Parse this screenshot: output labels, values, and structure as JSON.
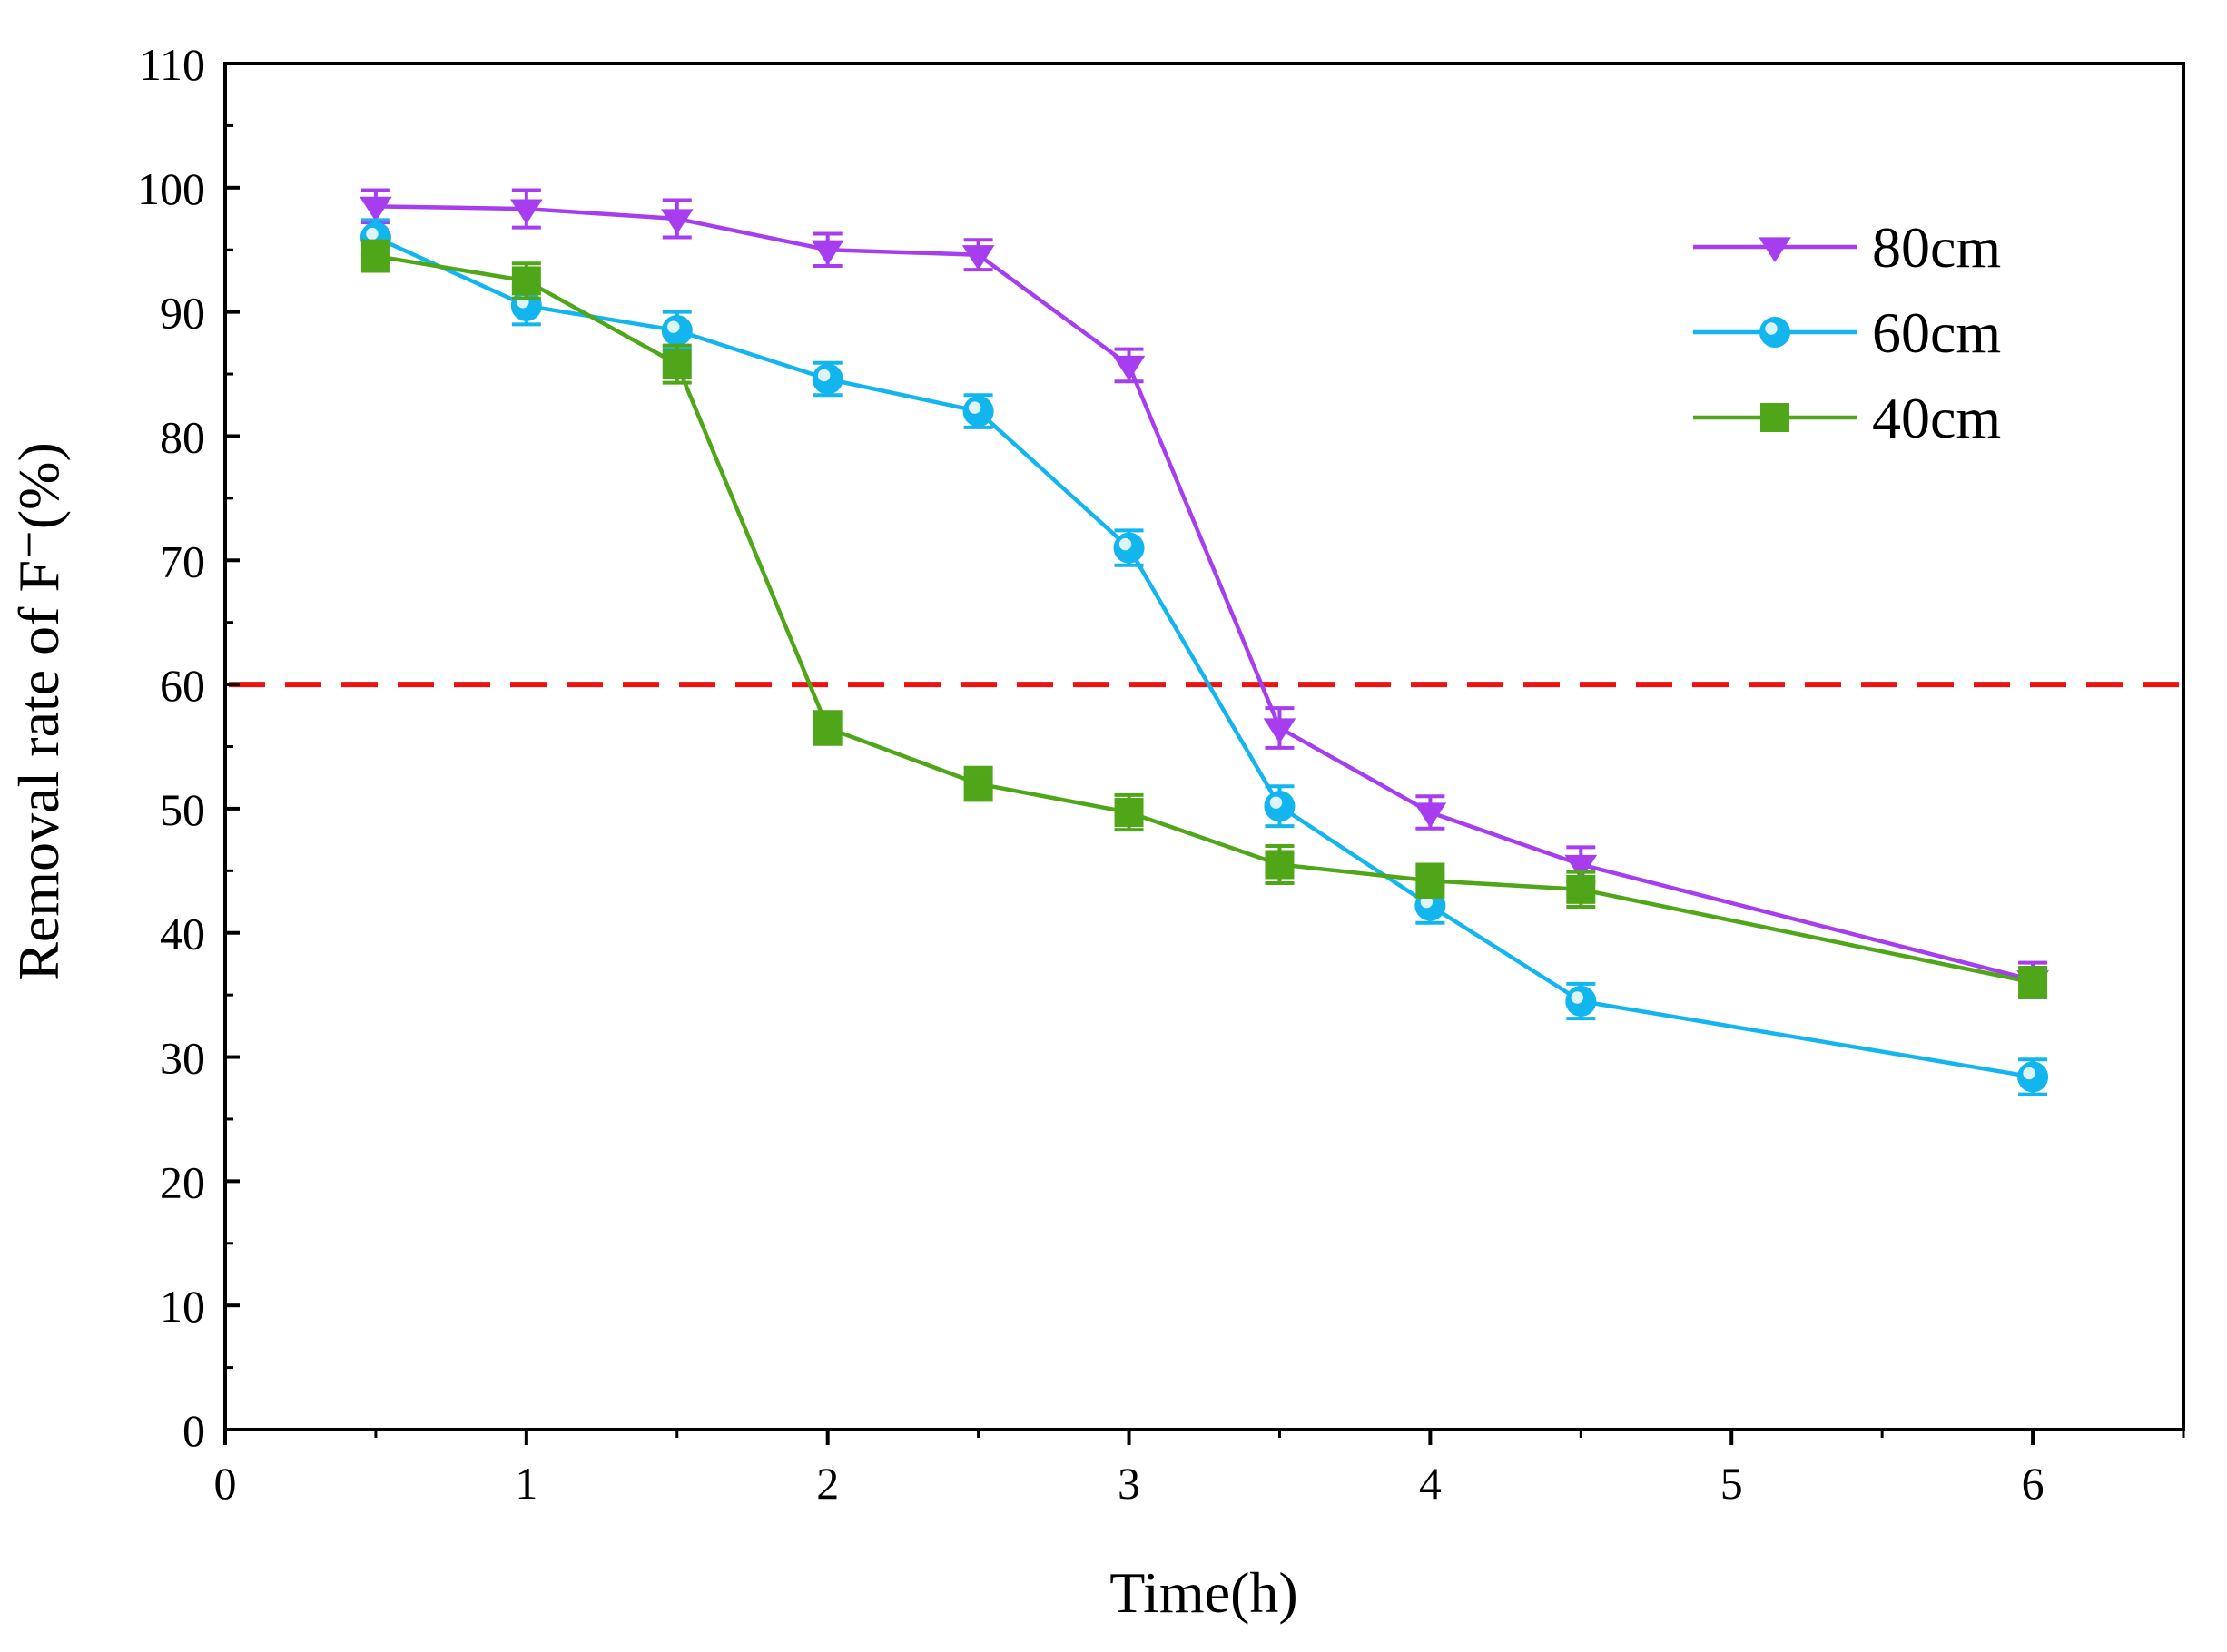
{
  "chart_data": {
    "type": "line",
    "title": "",
    "xlabel": "Time(h)",
    "ylabel": "Removal rate of F⁻(%)",
    "xlim": [
      0,
      6.5
    ],
    "ylim": [
      0,
      110
    ],
    "xticks": [
      0,
      1,
      2,
      3,
      4,
      5,
      6
    ],
    "yticks": [
      0,
      10,
      20,
      30,
      40,
      50,
      60,
      70,
      80,
      90,
      100,
      110
    ],
    "x": [
      0.5,
      1,
      1.5,
      2,
      2.5,
      3,
      3.5,
      4,
      4.5,
      6
    ],
    "legend_position": "top-right",
    "reference_line": {
      "y": 60,
      "color": "#ee1111",
      "style": "dashed"
    },
    "series": [
      {
        "name": "80cm",
        "marker": "triangle-down",
        "color": "#a63ef0",
        "values": [
          98.5,
          98.3,
          97.5,
          95.0,
          94.6,
          85.7,
          56.5,
          49.7,
          45.5,
          36.2
        ],
        "errors": [
          1.3,
          1.5,
          1.5,
          1.3,
          1.2,
          1.3,
          1.6,
          1.3,
          1.4,
          1.4
        ]
      },
      {
        "name": "60cm",
        "marker": "circle",
        "color": "#13b5ee",
        "values": [
          96.0,
          90.5,
          88.5,
          84.6,
          82.0,
          71.0,
          50.2,
          42.2,
          34.5,
          28.4
        ],
        "errors": [
          1.4,
          1.5,
          1.5,
          1.3,
          1.3,
          1.4,
          1.6,
          1.4,
          1.4,
          1.4
        ]
      },
      {
        "name": "40cm",
        "marker": "square",
        "color": "#4ea618",
        "values": [
          94.5,
          92.5,
          85.8,
          56.5,
          52.0,
          49.7,
          45.5,
          44.2,
          43.5,
          36.0
        ],
        "errors": [
          1.2,
          1.4,
          1.5,
          1.3,
          1.3,
          1.4,
          1.5,
          1.3,
          1.4,
          1.2
        ]
      }
    ]
  }
}
